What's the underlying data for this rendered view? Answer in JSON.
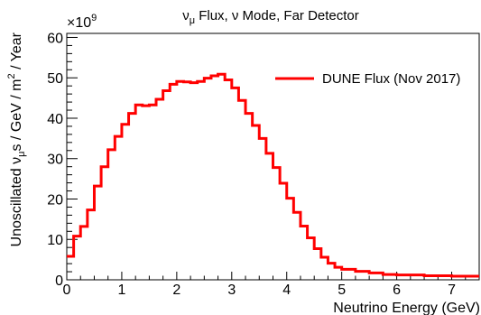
{
  "chart_data": {
    "type": "line",
    "style": "step-histogram",
    "title": "νμ Flux, ν Mode, Far Detector",
    "title_parts": {
      "nu": "ν",
      "mu": "μ",
      "rest": " Flux, ν Mode, Far Detector"
    },
    "xlabel": "Neutrino Energy (GeV)",
    "ylabel": "Unoscillated νμs /  GeV / m² / Year",
    "ylabel_parts": {
      "a": "Unoscillated ν",
      "mu": "μ",
      "b": "s /  GeV / m",
      "sq": "2",
      "c": " / Year"
    },
    "y_multiplier": "×10",
    "y_multiplier_exp": "9",
    "xlim": [
      0,
      7.5
    ],
    "ylim": [
      0,
      61
    ],
    "x_ticks": [
      "0",
      "1",
      "2",
      "3",
      "4",
      "5",
      "6",
      "7"
    ],
    "y_ticks": [
      "0",
      "10",
      "20",
      "30",
      "40",
      "50",
      "60"
    ],
    "grid": false,
    "legend_position": "top-right",
    "series": [
      {
        "name": "DUNE Flux (Nov 2017)",
        "color": "#ff0000",
        "bin_edges": [
          0,
          0.125,
          0.25,
          0.375,
          0.5,
          0.625,
          0.75,
          0.875,
          1.0,
          1.125,
          1.25,
          1.375,
          1.5,
          1.625,
          1.75,
          1.875,
          2.0,
          2.125,
          2.25,
          2.375,
          2.5,
          2.625,
          2.75,
          2.875,
          3.0,
          3.125,
          3.25,
          3.375,
          3.5,
          3.625,
          3.75,
          3.875,
          4.0,
          4.125,
          4.25,
          4.375,
          4.5,
          4.625,
          4.75,
          4.875,
          5.0,
          5.25,
          5.5,
          5.75,
          6.0,
          6.5,
          7.0,
          7.5
        ],
        "values": [
          5.8,
          10.8,
          13.2,
          17.3,
          23.2,
          28.0,
          32.2,
          35.5,
          38.5,
          41.2,
          43.3,
          43.1,
          43.3,
          44.7,
          46.8,
          48.4,
          49.1,
          49.0,
          48.8,
          49.1,
          49.9,
          50.5,
          50.9,
          49.5,
          47.5,
          44.4,
          41.2,
          38.2,
          35.0,
          31.3,
          27.8,
          23.9,
          20.2,
          16.7,
          13.3,
          10.4,
          7.7,
          5.6,
          4.1,
          3.1,
          2.6,
          2.1,
          1.7,
          1.3,
          1.2,
          1.0,
          0.9
        ]
      }
    ]
  }
}
